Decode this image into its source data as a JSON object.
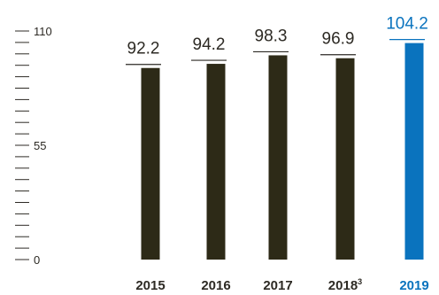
{
  "chart_data": {
    "type": "bar",
    "categories": [
      "2015",
      "2016",
      "2017",
      "2018",
      "2019"
    ],
    "category_superscripts": [
      "",
      "",
      "",
      "3",
      ""
    ],
    "values": [
      92.2,
      94.2,
      98.3,
      96.9,
      104.2
    ],
    "value_labels": [
      "92.2",
      "94.2",
      "98.3",
      "96.9",
      "104.2"
    ],
    "ylim": [
      0,
      110
    ],
    "yticks": [
      0,
      55,
      110
    ],
    "ytick_labels": [
      "0",
      "55",
      "110"
    ],
    "minor_tick_count": 20,
    "grid": false,
    "highlight_index": 4
  },
  "colors": {
    "bar": "#2d2a17",
    "highlight": "#0a73be",
    "text": "#2d2a24",
    "axis": "#2d2a24"
  }
}
